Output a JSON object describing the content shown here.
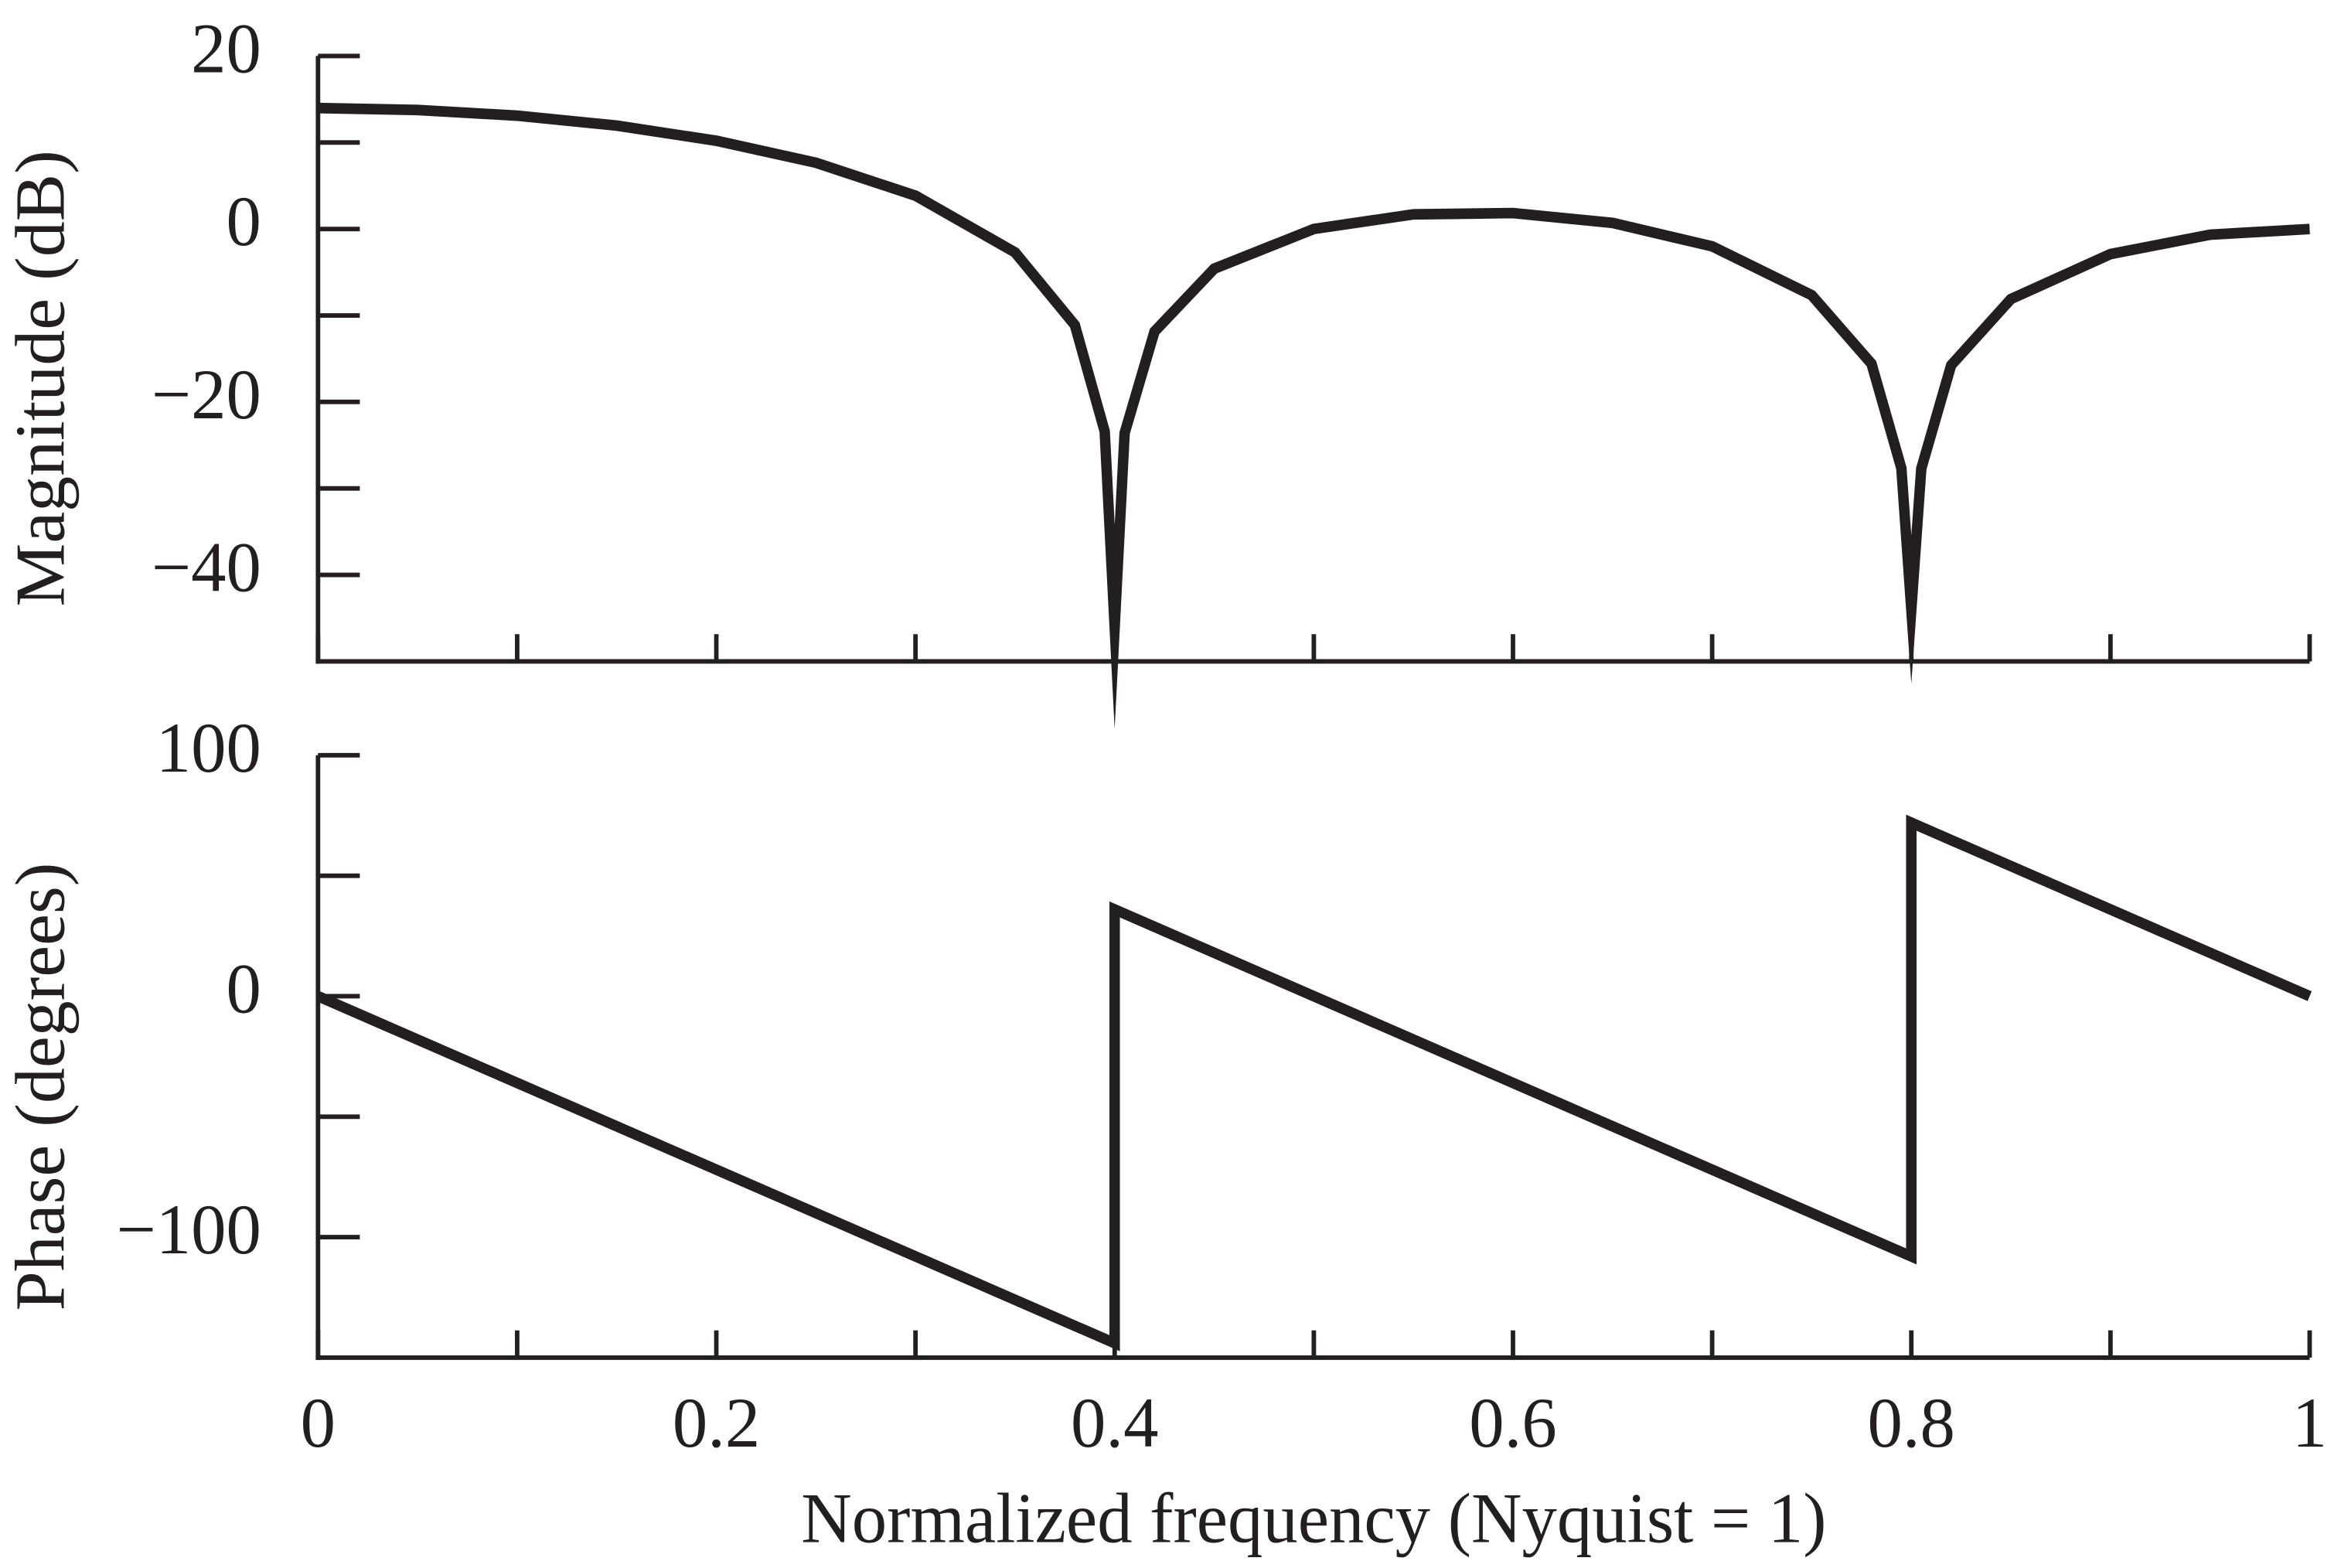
{
  "chart_data": [
    {
      "type": "line",
      "ylabel": "Magnitude (dB)",
      "color": "#231f20",
      "x": [
        0,
        0.05,
        0.1,
        0.15,
        0.2,
        0.25,
        0.3,
        0.35,
        0.38,
        0.395,
        0.4,
        0.405,
        0.42,
        0.45,
        0.5,
        0.55,
        0.6,
        0.65,
        0.7,
        0.75,
        0.78,
        0.795,
        0.8,
        0.805,
        0.82,
        0.85,
        0.9,
        0.95,
        1
      ],
      "values": [
        13.98,
        13.76,
        13.1,
        11.95,
        10.2,
        7.66,
        3.85,
        -2.71,
        -11.11,
        -23.41,
        -46,
        -23.6,
        -11.86,
        -4.59,
        0,
        1.69,
        1.84,
        0.7,
        -2.01,
        -7.66,
        -15.58,
        -27.66,
        -44,
        -27.71,
        -15.76,
        -8.1,
        -2.9,
        -0.66,
        0
      ],
      "xlim": [
        0,
        1
      ],
      "ylim": [
        -50,
        20
      ],
      "yticks": [
        20,
        0,
        {
          "value": -20,
          "label": "−20"
        },
        {
          "value": -40,
          "label": "−40"
        }
      ],
      "yminorticks": [
        10,
        -10,
        -30
      ]
    },
    {
      "type": "line",
      "ylabel": "Phase (degrees)",
      "xlabel": "Normalized frequency (Nyquist = 1)",
      "color": "#231f20",
      "x": [
        0,
        0.4,
        0.4,
        0.8,
        0.8,
        1
      ],
      "values": [
        0,
        -144,
        36,
        -108,
        72,
        0
      ],
      "xlim": [
        0,
        1
      ],
      "ylim": [
        -150,
        100
      ],
      "yticks": [
        100,
        0,
        {
          "value": -100,
          "label": "−100"
        }
      ],
      "yminorticks": [
        50,
        -50
      ],
      "xticks": [
        0,
        0.2,
        0.4,
        0.6,
        0.8,
        1
      ],
      "xminorticks": [
        0.1,
        0.3,
        0.5,
        0.7,
        0.9
      ]
    }
  ]
}
